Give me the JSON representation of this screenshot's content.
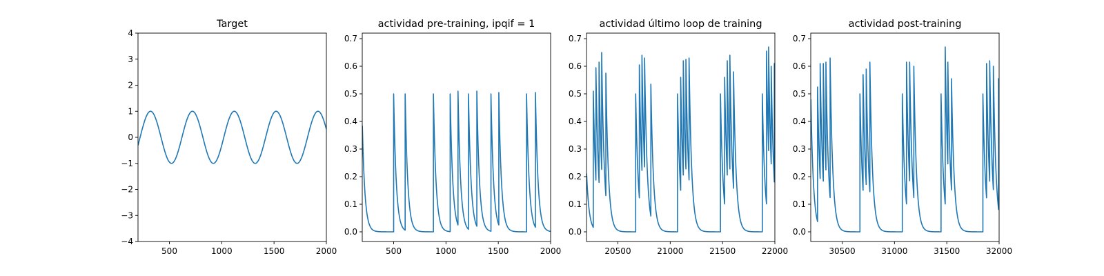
{
  "figure": {
    "background": "#ffffff",
    "line_color": "#1f77b4"
  },
  "chart_data": [
    {
      "type": "line",
      "title": "Target",
      "xlabel": "",
      "ylabel": "",
      "xlim": [
        200,
        2000
      ],
      "ylim": [
        -4,
        4
      ],
      "xticks": [
        500,
        1000,
        1500,
        2000
      ],
      "yticks": [
        -4,
        -3,
        -2,
        -1,
        0,
        1,
        2,
        3,
        4
      ],
      "grid": false,
      "series": [
        {
          "function": "sine",
          "amplitude": 1.0,
          "period": 400,
          "peak_x": [
            320,
            720,
            1120,
            1520,
            1920
          ],
          "x_range": [
            200,
            2000
          ]
        }
      ]
    },
    {
      "type": "line",
      "title": "actividad pre-training, ipqif = 1",
      "xlabel": "",
      "ylabel": "",
      "xlim": [
        200,
        2000
      ],
      "ylim": [
        -0.035,
        0.72
      ],
      "xticks": [
        500,
        1000,
        1500,
        2000
      ],
      "yticks": [
        0.0,
        0.1,
        0.2,
        0.3,
        0.4,
        0.5,
        0.6,
        0.7
      ],
      "grid": false,
      "series": [
        {
          "kind": "spike_decay",
          "decay_tau": 25,
          "baseline": 0.0,
          "initial_value": 0.4,
          "spikes": [
            {
              "x": 500,
              "y": 0.5
            },
            {
              "x": 610,
              "y": 0.5
            },
            {
              "x": 880,
              "y": 0.5
            },
            {
              "x": 1040,
              "y": 0.5
            },
            {
              "x": 1115,
              "y": 0.51
            },
            {
              "x": 1215,
              "y": 0.5
            },
            {
              "x": 1295,
              "y": 0.51
            },
            {
              "x": 1430,
              "y": 0.5
            },
            {
              "x": 1505,
              "y": 0.505
            },
            {
              "x": 1770,
              "y": 0.5
            },
            {
              "x": 1855,
              "y": 0.505
            }
          ]
        }
      ]
    },
    {
      "type": "line",
      "title": "actividad último loop de training",
      "xlabel": "",
      "ylabel": "",
      "xlim": [
        20200,
        22000
      ],
      "ylim": [
        -0.035,
        0.72
      ],
      "xticks": [
        20500,
        21000,
        21500,
        22000
      ],
      "yticks": [
        0.0,
        0.1,
        0.2,
        0.3,
        0.4,
        0.5,
        0.6,
        0.7
      ],
      "grid": false,
      "series": [
        {
          "kind": "spike_decay",
          "decay_tau": 25,
          "baseline": 0.0,
          "initial_value": 0.22,
          "spikes": [
            {
              "x": 20265,
              "y": 0.51
            },
            {
              "x": 20290,
              "y": 0.595
            },
            {
              "x": 20320,
              "y": 0.615
            },
            {
              "x": 20345,
              "y": 0.65
            },
            {
              "x": 20385,
              "y": 0.575
            },
            {
              "x": 20670,
              "y": 0.5
            },
            {
              "x": 20705,
              "y": 0.605
            },
            {
              "x": 20730,
              "y": 0.64
            },
            {
              "x": 20755,
              "y": 0.63
            },
            {
              "x": 20815,
              "y": 0.535
            },
            {
              "x": 21070,
              "y": 0.5
            },
            {
              "x": 21100,
              "y": 0.56
            },
            {
              "x": 21125,
              "y": 0.62
            },
            {
              "x": 21150,
              "y": 0.625
            },
            {
              "x": 21180,
              "y": 0.63
            },
            {
              "x": 21480,
              "y": 0.5
            },
            {
              "x": 21520,
              "y": 0.56
            },
            {
              "x": 21545,
              "y": 0.62
            },
            {
              "x": 21570,
              "y": 0.64
            },
            {
              "x": 21605,
              "y": 0.58
            },
            {
              "x": 21880,
              "y": 0.5
            },
            {
              "x": 21920,
              "y": 0.655
            },
            {
              "x": 21940,
              "y": 0.67
            },
            {
              "x": 21965,
              "y": 0.6
            },
            {
              "x": 21995,
              "y": 0.61
            }
          ]
        }
      ]
    },
    {
      "type": "line",
      "title": "actividad post-training",
      "xlabel": "",
      "ylabel": "",
      "xlim": [
        30200,
        32000
      ],
      "ylim": [
        -0.035,
        0.72
      ],
      "xticks": [
        30500,
        31000,
        31500,
        32000
      ],
      "yticks": [
        0.0,
        0.1,
        0.2,
        0.3,
        0.4,
        0.5,
        0.6,
        0.7
      ],
      "grid": false,
      "series": [
        {
          "kind": "spike_decay",
          "decay_tau": 25,
          "baseline": 0.0,
          "initial_value": 0.5,
          "spikes": [
            {
              "x": 30265,
              "y": 0.525
            },
            {
              "x": 30290,
              "y": 0.61
            },
            {
              "x": 30320,
              "y": 0.61
            },
            {
              "x": 30345,
              "y": 0.615
            },
            {
              "x": 30385,
              "y": 0.63
            },
            {
              "x": 30670,
              "y": 0.5
            },
            {
              "x": 30700,
              "y": 0.57
            },
            {
              "x": 30730,
              "y": 0.59
            },
            {
              "x": 30765,
              "y": 0.615
            },
            {
              "x": 31075,
              "y": 0.5
            },
            {
              "x": 31115,
              "y": 0.615
            },
            {
              "x": 31145,
              "y": 0.615
            },
            {
              "x": 31185,
              "y": 0.6
            },
            {
              "x": 31445,
              "y": 0.5
            },
            {
              "x": 31485,
              "y": 0.67
            },
            {
              "x": 31510,
              "y": 0.615
            },
            {
              "x": 31545,
              "y": 0.555
            },
            {
              "x": 31845,
              "y": 0.5
            },
            {
              "x": 31880,
              "y": 0.61
            },
            {
              "x": 31910,
              "y": 0.62
            },
            {
              "x": 31945,
              "y": 0.6
            },
            {
              "x": 31995,
              "y": 0.555
            }
          ]
        }
      ]
    }
  ]
}
